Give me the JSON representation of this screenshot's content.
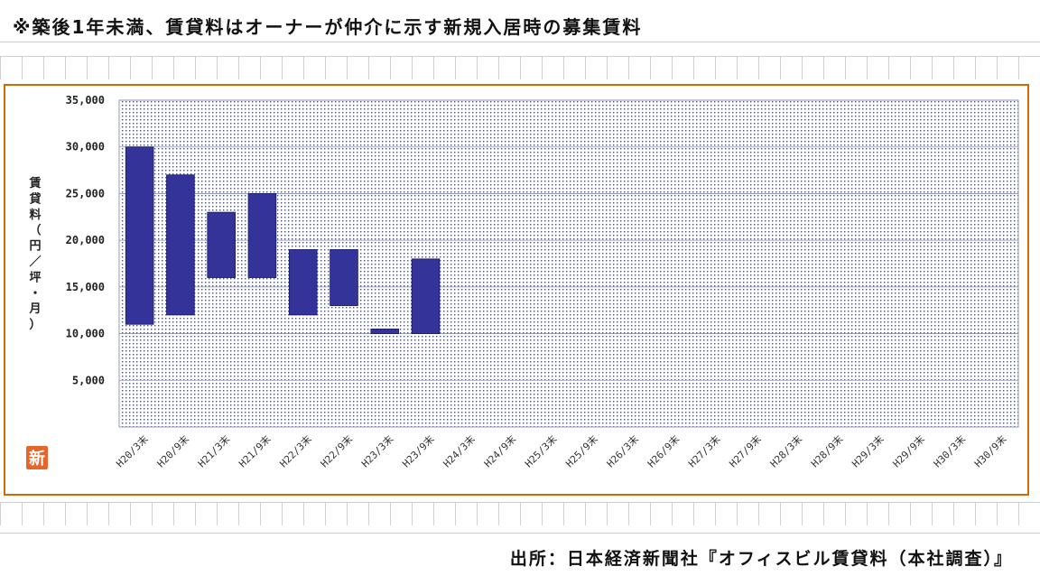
{
  "header": {
    "note": "※築後1年未満、賃貸料はオーナーが仲介に示す新規入居時の募集賃料"
  },
  "footer": {
    "source": "出所：日本経済新聞社『オフィスビル賃貸料（本社調査）』"
  },
  "badge": {
    "label": "新",
    "color": "#e8642a"
  },
  "colors": {
    "bar": "#333399",
    "plot_dots": "#3b4db8",
    "frame": "#d26a00"
  },
  "chart_data": {
    "type": "bar",
    "subtype": "floating-range",
    "categories": [
      "H20/3末",
      "H20/9末",
      "H21/3末",
      "H21/9末",
      "H22/3末",
      "H22/9末",
      "H23/3末",
      "H23/9末",
      "H24/3末",
      "H24/9末",
      "H25/3末",
      "H25/9末",
      "H26/3末",
      "H26/9末",
      "H27/3末",
      "H27/9末",
      "H28/3末",
      "H28/9末",
      "H29/3末",
      "H29/9末",
      "H30/3末",
      "H30/9末"
    ],
    "ranges": [
      [
        11000,
        30000
      ],
      [
        12000,
        27000
      ],
      [
        16000,
        23000
      ],
      [
        16000,
        25000
      ],
      [
        12000,
        19000
      ],
      [
        13000,
        19000
      ],
      [
        10000,
        10500
      ],
      [
        10000,
        18000
      ],
      null,
      null,
      null,
      null,
      null,
      null,
      null,
      null,
      null,
      null,
      null,
      null,
      null,
      null
    ],
    "ylabel": "賃貸料（円／坪・月）",
    "ylim": [
      0,
      35000
    ],
    "yticks": [
      5000,
      10000,
      15000,
      20000,
      25000,
      30000,
      35000
    ],
    "ytick_labels": [
      "5,000",
      "10,000",
      "15,000",
      "20,000",
      "25,000",
      "30,000",
      "35,000"
    ],
    "grid": true
  }
}
